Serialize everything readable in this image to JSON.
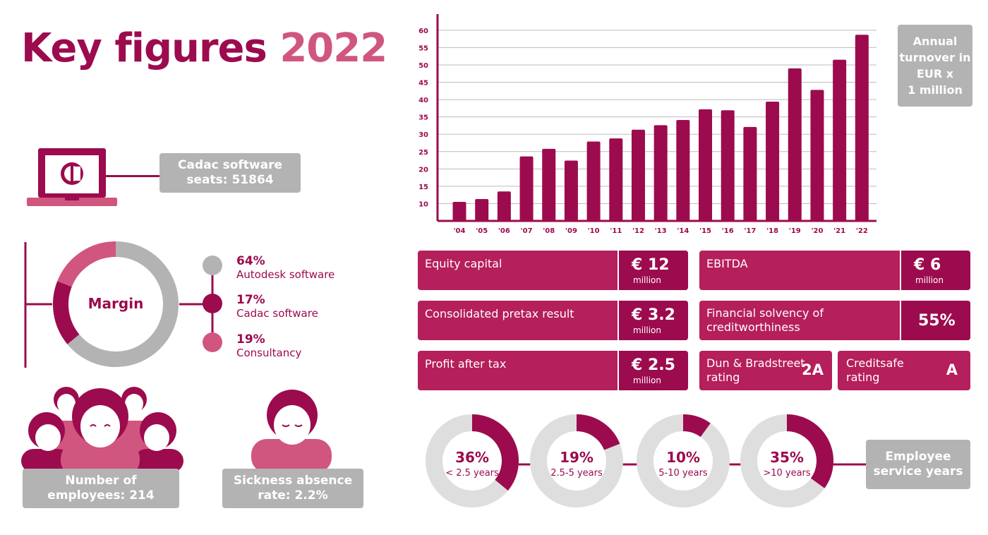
{
  "title": {
    "main": "Key figures",
    "year": "2022"
  },
  "software_seats": {
    "line1": "Cadac software",
    "line2": "seats: 51864"
  },
  "margin": {
    "label": "Margin",
    "segments": [
      {
        "percent": "64%",
        "name": "Autodesk software",
        "value": 64,
        "color": "#b3b3b3"
      },
      {
        "percent": "17%",
        "name": "Cadac software",
        "value": 17,
        "color": "#9c0b4e"
      },
      {
        "percent": "19%",
        "name": "Consultancy",
        "value": 19,
        "color": "#d0567f"
      }
    ]
  },
  "employees": {
    "line1": "Number of",
    "line2": "employees: 214"
  },
  "sickness": {
    "line1": "Sickness absence",
    "line2": "rate: 2.2%"
  },
  "annual_turnover_label": {
    "line1": "Annual",
    "line2": "turnover in",
    "line3": "EUR x",
    "line4": "1 million"
  },
  "chart_data": {
    "type": "bar",
    "title": "Annual turnover in EUR x 1 million",
    "categories": [
      "'04",
      "'05",
      "'06",
      "'07",
      "'08",
      "'09",
      "'10",
      "'11",
      "'12",
      "'13",
      "'14",
      "'15",
      "'16",
      "'17",
      "'18",
      "'19",
      "'20",
      "'21",
      "'22"
    ],
    "values": [
      10.5,
      11.3,
      13.5,
      23.6,
      25.8,
      22.4,
      27.9,
      28.8,
      31.3,
      32.6,
      34.1,
      37.2,
      36.9,
      32.1,
      39.4,
      49.0,
      42.8,
      51.5,
      58.7
    ],
    "yticks": [
      10,
      15,
      20,
      25,
      30,
      35,
      40,
      45,
      50,
      55,
      60
    ],
    "ylim": [
      5,
      62
    ],
    "grid": true,
    "color": "#9c0b4e"
  },
  "financials": {
    "equity": {
      "label": "Equity capital",
      "value": "€ 12",
      "unit": "million"
    },
    "ebitda": {
      "label": "EBITDA",
      "value": "€ 6",
      "unit": "million"
    },
    "pretax": {
      "label": "Consolidated pretax result",
      "value": "€ 3.2",
      "unit": "million"
    },
    "solvency": {
      "label_line1": "Financial solvency of",
      "label_line2": "creditworthiness",
      "value": "55%"
    },
    "profit": {
      "label": "Profit after tax",
      "value": "€ 2.5",
      "unit": "million"
    },
    "dun": {
      "label_line1": "Dun & Bradstreet",
      "label_line2": "rating",
      "value": "2A"
    },
    "creditsafe": {
      "label_line1": "Creditsafe",
      "label_line2": "rating",
      "value": "A"
    }
  },
  "service_years": {
    "label_line1": "Employee",
    "label_line2": "service years",
    "items": [
      {
        "percent": "36%",
        "range": "< 2.5 years",
        "value": 36
      },
      {
        "percent": "19%",
        "range": "2.5-5 years",
        "value": 19
      },
      {
        "percent": "10%",
        "range": "5-10 years",
        "value": 10
      },
      {
        "percent": "35%",
        "range": ">10 years",
        "value": 35
      }
    ]
  },
  "colors": {
    "primary": "#9c0b4e",
    "secondary": "#d0567f",
    "mid": "#b51f5b",
    "grey": "#b3b3b3",
    "light_grey": "#dedede"
  }
}
